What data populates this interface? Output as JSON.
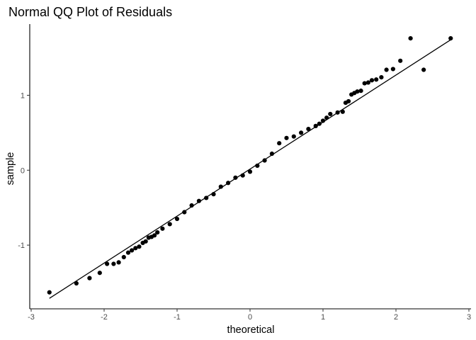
{
  "chart_data": {
    "type": "scatter",
    "title": "Normal QQ Plot of Residuals",
    "xlabel": "theoretical",
    "ylabel": "sample",
    "xlim": [
      -3,
      3
    ],
    "ylim": [
      -1.85,
      1.95
    ],
    "x_ticks": [
      -3,
      -2,
      -1,
      0,
      1,
      2,
      3
    ],
    "x_tick_labels": [
      "-3",
      "-2",
      "-1",
      "0",
      "1",
      "2",
      "3"
    ],
    "y_ticks": [
      -1,
      0,
      1
    ],
    "y_tick_labels": [
      "-1",
      "0",
      "1"
    ],
    "grid": false,
    "reference_line": {
      "x": [
        -2.75,
        2.75
      ],
      "y": [
        -1.71,
        1.74
      ]
    },
    "points": {
      "x": [
        -2.75,
        -2.38,
        -2.2,
        -2.06,
        -1.96,
        -1.87,
        -1.8,
        -1.73,
        -1.67,
        -1.62,
        -1.57,
        -1.52,
        -1.47,
        -1.43,
        -1.39,
        -1.35,
        -1.31,
        -1.27,
        -1.2,
        -1.1,
        -1.0,
        -0.9,
        -0.8,
        -0.7,
        -0.6,
        -0.5,
        -0.4,
        -0.3,
        -0.2,
        -0.1,
        0.0,
        0.1,
        0.2,
        0.3,
        0.4,
        0.5,
        0.6,
        0.7,
        0.8,
        0.9,
        0.95,
        1.0,
        1.05,
        1.1,
        1.2,
        1.27,
        1.31,
        1.35,
        1.39,
        1.43,
        1.47,
        1.52,
        1.57,
        1.62,
        1.67,
        1.73,
        1.8,
        1.87,
        1.96,
        2.06,
        2.2,
        2.38,
        2.75
      ],
      "y": [
        -1.63,
        -1.51,
        -1.44,
        -1.37,
        -1.25,
        -1.25,
        -1.23,
        -1.16,
        -1.1,
        -1.07,
        -1.04,
        -1.02,
        -0.97,
        -0.95,
        -0.9,
        -0.89,
        -0.87,
        -0.83,
        -0.78,
        -0.72,
        -0.65,
        -0.56,
        -0.47,
        -0.41,
        -0.37,
        -0.32,
        -0.22,
        -0.17,
        -0.1,
        -0.07,
        -0.02,
        0.06,
        0.13,
        0.22,
        0.36,
        0.43,
        0.45,
        0.5,
        0.55,
        0.59,
        0.62,
        0.66,
        0.7,
        0.75,
        0.77,
        0.78,
        0.9,
        0.92,
        1.01,
        1.03,
        1.05,
        1.06,
        1.16,
        1.17,
        1.2,
        1.21,
        1.24,
        1.34,
        1.35,
        1.46,
        1.76,
        1.34,
        1.76
      ]
    }
  }
}
